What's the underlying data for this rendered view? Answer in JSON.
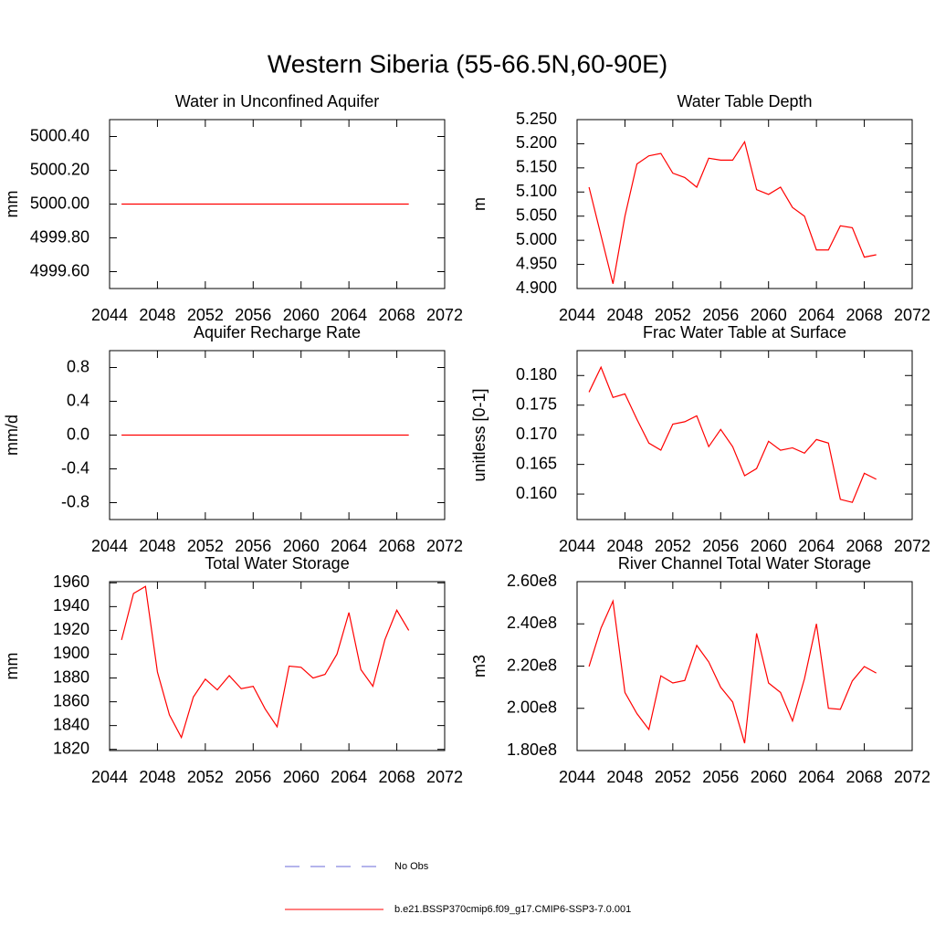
{
  "title": "Western Siberia (55-66.5N,60-90E)",
  "legend": [
    {
      "name": "No Obs",
      "color": "#6a6ad8",
      "dash": true
    },
    {
      "name": "b.e21.BSSP370cmip6.f09_g17.CMIP6-SSP3-7.0.001",
      "color": "#ff0000",
      "dash": false
    }
  ],
  "chart_data": [
    {
      "type": "line",
      "title": "Water in Unconfined Aquifer",
      "ylabel": "mm",
      "x": [
        2045,
        2046,
        2047,
        2048,
        2049,
        2050,
        2051,
        2052,
        2053,
        2054,
        2055,
        2056,
        2057,
        2058,
        2059,
        2060,
        2061,
        2062,
        2063,
        2064,
        2065,
        2066,
        2067,
        2068,
        2069
      ],
      "values": [
        5000,
        5000,
        5000,
        5000,
        5000,
        5000,
        5000,
        5000,
        5000,
        5000,
        5000,
        5000,
        5000,
        5000,
        5000,
        5000,
        5000,
        5000,
        5000,
        5000,
        5000,
        5000,
        5000,
        5000,
        5000
      ],
      "color": "#ff0000",
      "xlim": [
        2044,
        2072
      ],
      "xticks": [
        2044,
        2048,
        2052,
        2056,
        2060,
        2064,
        2068,
        2072
      ],
      "ylim": [
        4999.5,
        5000.5
      ],
      "yticks": [
        {
          "value": 4999.6,
          "label": "4999.60"
        },
        {
          "value": 4999.8,
          "label": "4999.80"
        },
        {
          "value": 5000,
          "label": "5000.00"
        },
        {
          "value": 5000.2,
          "label": "5000.20"
        },
        {
          "value": 5000.4,
          "label": "5000.40"
        }
      ]
    },
    {
      "type": "line",
      "title": "Water Table Depth",
      "ylabel": "m",
      "x": [
        2045,
        2046,
        2047,
        2048,
        2049,
        2050,
        2051,
        2052,
        2053,
        2054,
        2055,
        2056,
        2057,
        2058,
        2059,
        2060,
        2061,
        2062,
        2063,
        2064,
        2065,
        2066,
        2067,
        2068,
        2069
      ],
      "values": [
        5.11,
        5.01,
        4.91,
        5.05,
        5.158,
        5.175,
        5.18,
        5.139,
        5.13,
        5.11,
        5.17,
        5.166,
        5.166,
        5.204,
        5.105,
        5.095,
        5.11,
        5.068,
        5.05,
        4.98,
        4.98,
        5.03,
        5.026,
        4.965,
        4.97
      ],
      "color": "#ff0000",
      "xlim": [
        2044,
        2072
      ],
      "xticks": [
        2044,
        2048,
        2052,
        2056,
        2060,
        2064,
        2068,
        2072
      ],
      "ylim": [
        4.9,
        5.25
      ],
      "yticks": [
        {
          "value": 4.9,
          "label": "4.900"
        },
        {
          "value": 4.95,
          "label": "4.950"
        },
        {
          "value": 5.0,
          "label": "5.000"
        },
        {
          "value": 5.05,
          "label": "5.050"
        },
        {
          "value": 5.1,
          "label": "5.100"
        },
        {
          "value": 5.15,
          "label": "5.150"
        },
        {
          "value": 5.2,
          "label": "5.200"
        },
        {
          "value": 5.25,
          "label": "5.250"
        }
      ]
    },
    {
      "type": "line",
      "title": "Aquifer Recharge Rate",
      "ylabel": "mm/d",
      "x": [
        2045,
        2046,
        2047,
        2048,
        2049,
        2050,
        2051,
        2052,
        2053,
        2054,
        2055,
        2056,
        2057,
        2058,
        2059,
        2060,
        2061,
        2062,
        2063,
        2064,
        2065,
        2066,
        2067,
        2068,
        2069
      ],
      "values": [
        0,
        0,
        0,
        0,
        0,
        0,
        0,
        0,
        0,
        0,
        0,
        0,
        0,
        0,
        0,
        0,
        0,
        0,
        0,
        0,
        0,
        0,
        0,
        0,
        0
      ],
      "color": "#ff0000",
      "xlim": [
        2044,
        2072
      ],
      "xticks": [
        2044,
        2048,
        2052,
        2056,
        2060,
        2064,
        2068,
        2072
      ],
      "ylim": [
        -1,
        1
      ],
      "yticks": [
        -0.8,
        -0.4,
        {
          "value": 0,
          "label": "0.0"
        },
        0.4,
        0.8
      ]
    },
    {
      "type": "line",
      "title": "Frac Water Table at Surface",
      "ylabel": "unitless [0-1]",
      "x": [
        2045,
        2046,
        2047,
        2048,
        2049,
        2050,
        2051,
        2052,
        2053,
        2054,
        2055,
        2056,
        2057,
        2058,
        2059,
        2060,
        2061,
        2062,
        2063,
        2064,
        2065,
        2066,
        2067,
        2068,
        2069
      ],
      "values": [
        0.1772,
        0.1814,
        0.1763,
        0.1769,
        0.1726,
        0.1686,
        0.1674,
        0.1718,
        0.1722,
        0.1732,
        0.168,
        0.1709,
        0.168,
        0.1631,
        0.1643,
        0.1689,
        0.1674,
        0.1678,
        0.1669,
        0.1692,
        0.1686,
        0.1591,
        0.1586,
        0.1635,
        0.1625
      ],
      "color": "#ff0000",
      "xlim": [
        2044,
        2072
      ],
      "xticks": [
        2044,
        2048,
        2052,
        2056,
        2060,
        2064,
        2068,
        2072
      ],
      "ylim": [
        0.1557,
        0.1842
      ],
      "yticks": [
        {
          "value": 0.16,
          "label": "0.160"
        },
        0.165,
        {
          "value": 0.17,
          "label": "0.170"
        },
        0.175,
        {
          "value": 0.18,
          "label": "0.180"
        }
      ]
    },
    {
      "type": "line",
      "title": "Total Water Storage",
      "ylabel": "mm",
      "x": [
        2045,
        2046,
        2047,
        2048,
        2049,
        2050,
        2051,
        2052,
        2053,
        2054,
        2055,
        2056,
        2057,
        2058,
        2059,
        2060,
        2061,
        2062,
        2063,
        2064,
        2065,
        2066,
        2067,
        2068,
        2069
      ],
      "values": [
        1912,
        1951,
        1957,
        1885,
        1849,
        1830,
        1864,
        1879,
        1870,
        1882,
        1871,
        1873,
        1854,
        1839,
        1890,
        1889,
        1880,
        1883,
        1900,
        1935,
        1887,
        1873,
        1912,
        1937,
        1920
      ],
      "color": "#ff0000",
      "xlim": [
        2044,
        2072
      ],
      "xticks": [
        2044,
        2048,
        2052,
        2056,
        2060,
        2064,
        2068,
        2072
      ],
      "ylim": [
        1819,
        1961
      ],
      "yticks": [
        1820,
        1840,
        1860,
        1880,
        1900,
        1920,
        1940,
        1960
      ]
    },
    {
      "type": "line",
      "title": "River Channel Total Water Storage",
      "ylabel": "m3",
      "x": [
        2045,
        2046,
        2047,
        2048,
        2049,
        2050,
        2051,
        2052,
        2053,
        2054,
        2055,
        2056,
        2057,
        2058,
        2059,
        2060,
        2061,
        2062,
        2063,
        2064,
        2065,
        2066,
        2067,
        2068,
        2069
      ],
      "values": [
        219800000,
        238000000,
        250800000,
        207500000,
        197500000,
        190000000,
        215400000,
        212000000,
        213200000,
        229800000,
        222000000,
        210000000,
        203000000,
        183500000,
        235500000,
        212000000,
        207500000,
        194000000,
        214000000,
        240000000,
        200000000,
        199500000,
        213000000,
        219800000,
        216700000
      ],
      "color": "#ff0000",
      "xlim": [
        2044,
        2072
      ],
      "xticks": [
        2044,
        2048,
        2052,
        2056,
        2060,
        2064,
        2068,
        2072
      ],
      "ylim": [
        180000000,
        260000000
      ],
      "yticks": [
        {
          "value": 180000000,
          "label": "1.80e8"
        },
        {
          "value": 200000000,
          "label": "2.00e8"
        },
        {
          "value": 220000000,
          "label": "2.20e8"
        },
        {
          "value": 240000000,
          "label": "2.40e8"
        },
        {
          "value": 260000000,
          "label": "2.60e8"
        }
      ]
    }
  ]
}
